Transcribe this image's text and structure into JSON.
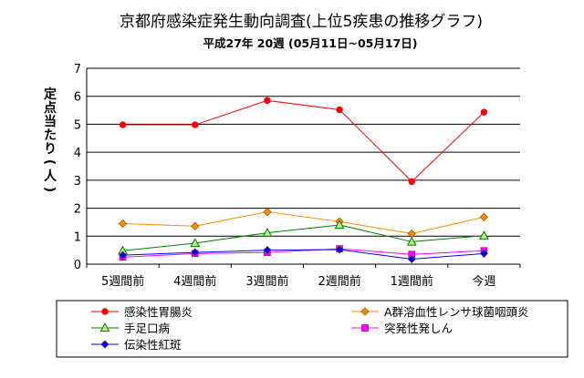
{
  "chart_data": {
    "type": "line",
    "title": "京都府感染症発生動向調査(上位5疾患の推移グラフ)",
    "subtitle": "平成27年 20週 (05月11日~05月17日)",
    "ylabel": "定点当たり(人)",
    "xlabel": "",
    "categories": [
      "5週間前",
      "4週間前",
      "3週間前",
      "2週間前",
      "1週間前",
      "今週"
    ],
    "ylim": [
      0,
      7
    ],
    "yticks": [
      "0",
      "1",
      "2",
      "3",
      "4",
      "5",
      "6",
      "7"
    ],
    "grid": true,
    "legend_position": "bottom",
    "series": [
      {
        "name": "感染性胃腸炎",
        "color": "#ff0000",
        "marker": "circle",
        "values": [
          4.98,
          4.98,
          5.85,
          5.52,
          2.95,
          5.43
        ]
      },
      {
        "name": "A群溶血性レンサ球菌咽頭炎",
        "color": "#ff8c00",
        "marker": "diamond",
        "values": [
          1.45,
          1.36,
          1.87,
          1.52,
          1.09,
          1.68
        ]
      },
      {
        "name": "手足口病",
        "color": "#008000",
        "marker": "triangle",
        "values": [
          0.48,
          0.75,
          1.12,
          1.4,
          0.8,
          1.02
        ]
      },
      {
        "name": "突発性発しん",
        "color": "#ff00ff",
        "marker": "square",
        "values": [
          0.25,
          0.38,
          0.42,
          0.55,
          0.35,
          0.48
        ]
      },
      {
        "name": "伝染性紅斑",
        "color": "#0000ff",
        "marker": "diamond",
        "values": [
          0.32,
          0.42,
          0.5,
          0.52,
          0.18,
          0.38
        ]
      }
    ]
  }
}
